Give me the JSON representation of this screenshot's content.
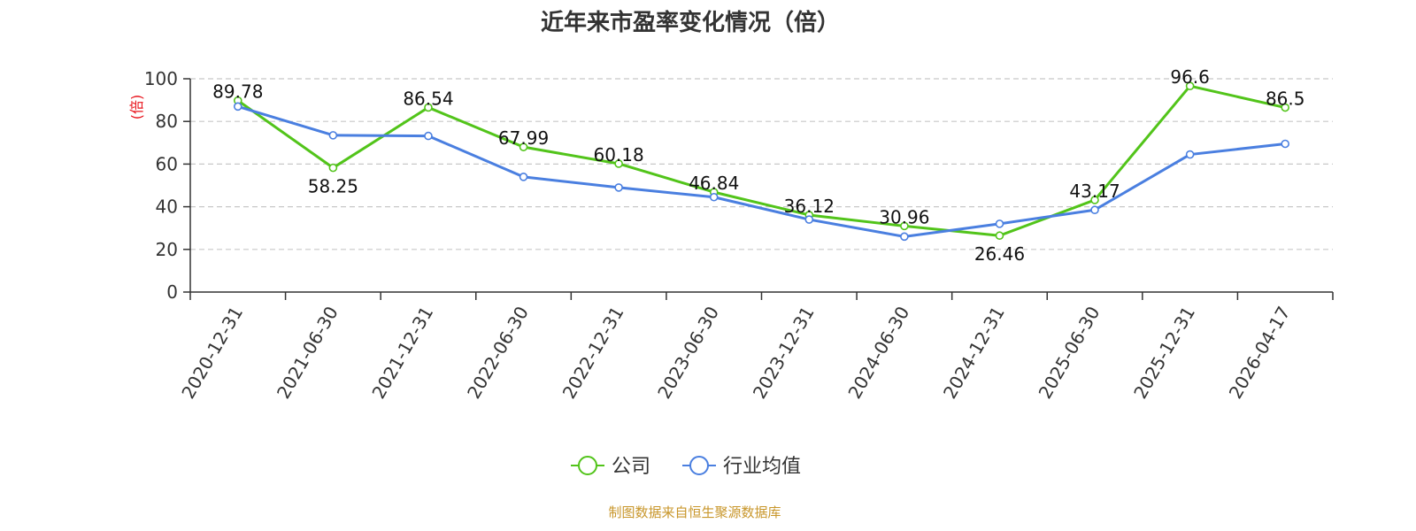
{
  "chart_data": {
    "type": "line",
    "title": "近年来市盈率变化情况（倍）",
    "ylabel": "(倍)",
    "ylim": [
      0,
      100
    ],
    "yticks": [
      0,
      20,
      40,
      60,
      80,
      100
    ],
    "grid": true,
    "categories": [
      "2020-12-31",
      "2021-06-30",
      "2021-12-31",
      "2022-06-30",
      "2022-12-31",
      "2023-06-30",
      "2023-12-31",
      "2024-06-30",
      "2024-12-31",
      "2025-06-30",
      "2025-12-31",
      "2026-04-17"
    ],
    "series": [
      {
        "name": "公司",
        "color": "#52c41a",
        "values": [
          89.78,
          58.25,
          86.54,
          67.99,
          60.18,
          46.84,
          36.12,
          30.96,
          26.46,
          43.17,
          96.6,
          86.5
        ],
        "labels": [
          "89.78",
          "58.25",
          "86.54",
          "67.99",
          "60.18",
          "46.84",
          "36.12",
          "30.96",
          "26.46",
          "43.17",
          "96.6",
          "86.5"
        ]
      },
      {
        "name": "行业均值",
        "color": "#4a7fe0",
        "values": [
          87,
          73.5,
          73.2,
          54,
          49,
          44.5,
          34,
          26,
          32,
          38.5,
          64.5,
          69.5
        ]
      }
    ],
    "legend_position": "bottom",
    "source": "制图数据来自恒生聚源数据库"
  }
}
